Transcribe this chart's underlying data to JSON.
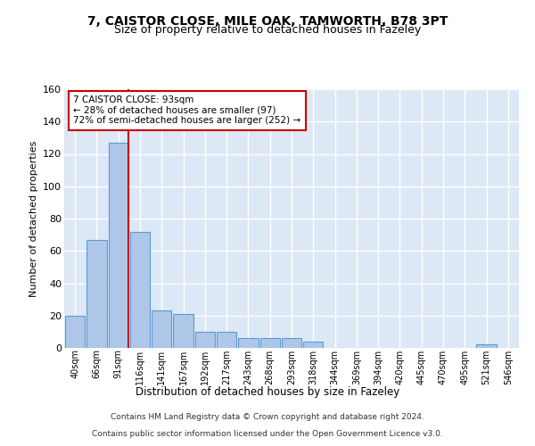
{
  "title": "7, CAISTOR CLOSE, MILE OAK, TAMWORTH, B78 3PT",
  "subtitle": "Size of property relative to detached houses in Fazeley",
  "xlabel": "Distribution of detached houses by size in Fazeley",
  "ylabel": "Number of detached properties",
  "bar_labels": [
    "40sqm",
    "66sqm",
    "91sqm",
    "116sqm",
    "141sqm",
    "167sqm",
    "192sqm",
    "217sqm",
    "243sqm",
    "268sqm",
    "293sqm",
    "318sqm",
    "344sqm",
    "369sqm",
    "394sqm",
    "420sqm",
    "445sqm",
    "470sqm",
    "495sqm",
    "521sqm",
    "546sqm"
  ],
  "bar_values": [
    20,
    67,
    127,
    72,
    23,
    21,
    10,
    10,
    6,
    6,
    6,
    4,
    0,
    0,
    0,
    0,
    0,
    0,
    0,
    2,
    0
  ],
  "bar_color": "#aec6e8",
  "bar_edge_color": "#5b9bd5",
  "background_color": "#dce8f5",
  "grid_color": "#ffffff",
  "red_line_index": 2,
  "annotation_line1": "7 CAISTOR CLOSE: 93sqm",
  "annotation_line2": "← 28% of detached houses are smaller (97)",
  "annotation_line3": "72% of semi-detached houses are larger (252) →",
  "annotation_box_color": "#ffffff",
  "annotation_box_edge": "#cc0000",
  "ylim": [
    0,
    160
  ],
  "yticks": [
    0,
    20,
    40,
    60,
    80,
    100,
    120,
    140,
    160
  ],
  "footer_line1": "Contains HM Land Registry data © Crown copyright and database right 2024.",
  "footer_line2": "Contains public sector information licensed under the Open Government Licence v3.0."
}
